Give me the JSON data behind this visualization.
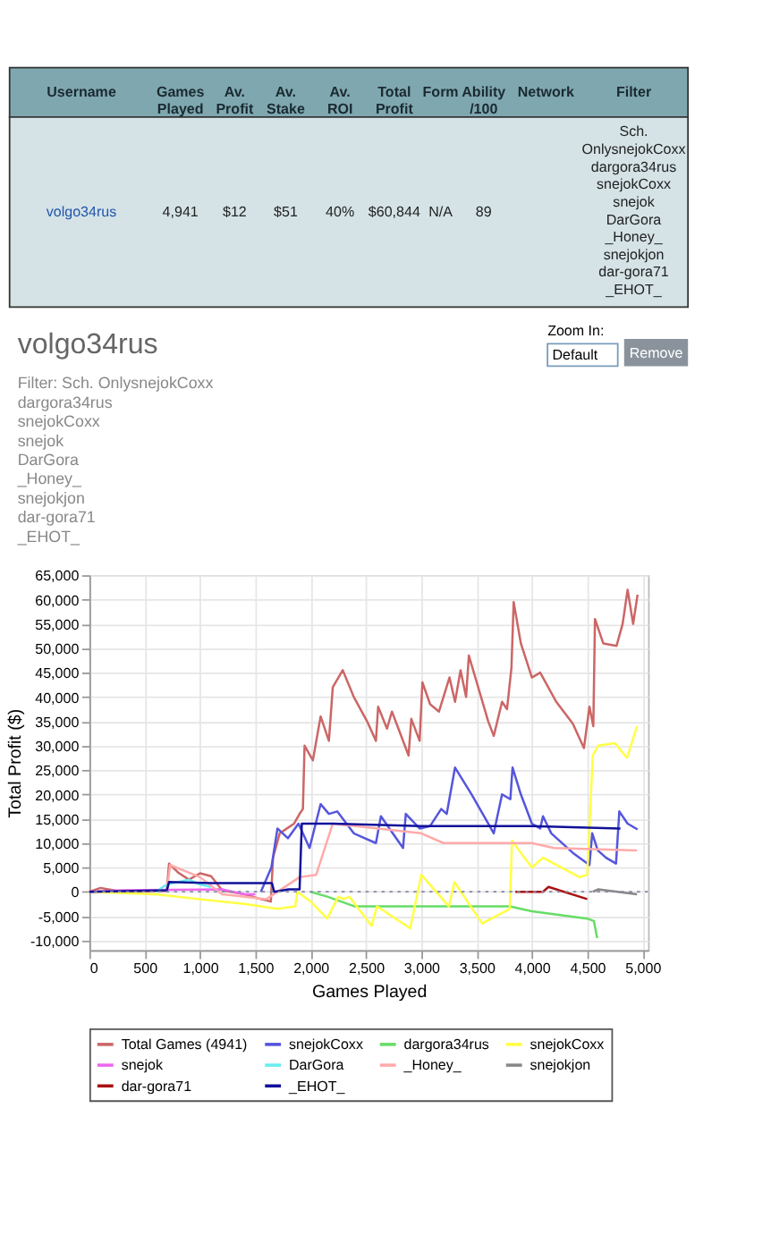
{
  "chart_data": {
    "type": "line",
    "title": "volgo34rus",
    "subtitle": "Filter: Sch. OnlysnejokCoxx\ndargora34rus\nsnejokCoxx\nsnejok\nDarGora\n_Honey_\nsnejokjon\ndar-gora71\n_EHOT_",
    "xlabel": "Games Played",
    "ylabel": "Total Profit ($)",
    "annotations": [
      "Username",
      "Games Played",
      "Av. Profit",
      "Av. Stake",
      "Av. ROI",
      "Total Profit",
      "Form",
      "Ability /100",
      "Network",
      "Filter",
      "volgo34rus",
      "4,941",
      "$12",
      "$51",
      "40%",
      "$60,844",
      "N/A",
      "89",
      "Sch. OnlysnejokCoxx dargora34rus snejokCoxx snejok DarGora _Honey_ snejokjon dar-gora71 _EHOT_",
      "Zoom In:",
      "Default",
      "Remove"
    ],
    "xlim": [
      0,
      5050
    ],
    "ylim": [
      -12000,
      65000
    ],
    "xticks": [
      0,
      500,
      {
        "value": 1000,
        "label": "1,000"
      },
      {
        "value": 1500,
        "label": "1,500"
      },
      {
        "value": 2000,
        "label": "2,000"
      },
      {
        "value": 2500,
        "label": "2,500"
      },
      {
        "value": 3000,
        "label": "3,000"
      },
      {
        "value": 3500,
        "label": "3,500"
      },
      {
        "value": 4000,
        "label": "4,000"
      },
      {
        "value": 4500,
        "label": "4,500"
      },
      {
        "value": 5000,
        "label": "5,000"
      }
    ],
    "yticks": [
      {
        "value": -10000,
        "label": "-10,000"
      },
      {
        "value": -5000,
        "label": "-5,000"
      },
      0,
      {
        "value": 5000,
        "label": "5,000"
      },
      {
        "value": 10000,
        "label": "10,000"
      },
      {
        "value": 15000,
        "label": "15,000"
      },
      {
        "value": 20000,
        "label": "20,000"
      },
      {
        "value": 25000,
        "label": "25,000"
      },
      {
        "value": 30000,
        "label": "30,000"
      },
      {
        "value": 35000,
        "label": "35,000"
      },
      {
        "value": 40000,
        "label": "40,000"
      },
      {
        "value": 45000,
        "label": "45,000"
      },
      {
        "value": 50000,
        "label": "50,000"
      },
      {
        "value": 55000,
        "label": "55,000"
      },
      {
        "value": 60000,
        "label": "60,000"
      },
      {
        "value": 65000,
        "label": "65,000"
      }
    ],
    "grid": true,
    "legend": "bottom",
    "marker": "none",
    "line_style": "solid",
    "ref_lines": [
      {
        "axis": "y",
        "value": 0,
        "color": "#8888aa",
        "line_style": "dotted"
      }
    ],
    "series": [
      {
        "name": "Total Games (4941)",
        "color": "#cc6666",
        "x": [
          0,
          100,
          300,
          700,
          720,
          800,
          900,
          1000,
          1100,
          1200,
          1400,
          1550,
          1640,
          1660,
          1720,
          1850,
          1900,
          1930,
          1945,
          2020,
          2090,
          2165,
          2200,
          2290,
          2390,
          2510,
          2590,
          2610,
          2690,
          2735,
          2885,
          2910,
          2985,
          3010,
          3080,
          3160,
          3255,
          3305,
          3355,
          3405,
          3430,
          3605,
          3655,
          3730,
          3775,
          3815,
          3835,
          3900,
          4000,
          4075,
          4220,
          4370,
          4470,
          4520,
          4555,
          4570,
          4645,
          4765,
          4820,
          4865,
          4915,
          4955
        ],
        "values": [
          0,
          800,
          0,
          200,
          5800,
          4000,
          2500,
          3800,
          3200,
          300,
          -500,
          -1500,
          -2000,
          7000,
          12000,
          14000,
          16000,
          17000,
          30000,
          27000,
          36000,
          31000,
          42000,
          45500,
          40000,
          35000,
          31000,
          38000,
          33500,
          37000,
          28000,
          35500,
          31000,
          43000,
          38500,
          37000,
          44000,
          39000,
          45500,
          40000,
          48500,
          35000,
          32000,
          39000,
          37500,
          46000,
          59500,
          51000,
          44000,
          45000,
          39000,
          34500,
          29500,
          38000,
          34000,
          56000,
          51000,
          50500,
          55000,
          62000,
          55000,
          61000
        ]
      },
      {
        "name": "snejokCoxx",
        "color": "#5555dd",
        "x": [
          1550,
          1645,
          1700,
          1795,
          1890,
          1990,
          2090,
          2165,
          2240,
          2390,
          2490,
          2590,
          2635,
          2835,
          2860,
          2985,
          3080,
          3180,
          3230,
          3305,
          3455,
          3605,
          3655,
          3730,
          3805,
          3825,
          3900,
          4000,
          4075,
          4100,
          4175,
          4370,
          4520,
          4545,
          4595,
          4670,
          4760,
          4790,
          4865,
          4955
        ],
        "values": [
          0,
          5000,
          13000,
          11000,
          14000,
          9000,
          18000,
          16000,
          16500,
          12000,
          11000,
          10000,
          15500,
          9000,
          16000,
          13000,
          13500,
          17000,
          16000,
          25500,
          20000,
          14000,
          12000,
          20000,
          19000,
          25500,
          20000,
          14000,
          13000,
          15500,
          12000,
          8000,
          5500,
          12000,
          8500,
          7000,
          5800,
          16500,
          14000,
          12800
        ]
      },
      {
        "name": "dargora34rus",
        "color": "#66dd66",
        "x": [
          2000,
          2150,
          2400,
          3800,
          4000,
          4500,
          4560,
          4590
        ],
        "values": [
          0,
          -1000,
          -3000,
          -3000,
          -4000,
          -5500,
          -6000,
          -9500
        ]
      },
      {
        "name": "snejokCoxx",
        "color": "#ffff44",
        "x": [
          0,
          600,
          1000,
          1400,
          1700,
          1860,
          1880,
          2000,
          2150,
          2250,
          2300,
          2350,
          2550,
          2600,
          2900,
          3000,
          3250,
          3300,
          3550,
          3800,
          3820,
          3900,
          4000,
          4100,
          4430,
          4500,
          4550,
          4600,
          4750,
          4860,
          4950
        ],
        "values": [
          0,
          -500,
          -1500,
          -2500,
          -3500,
          -3000,
          0,
          -2000,
          -5500,
          -1000,
          -1500,
          -1000,
          -7000,
          -3000,
          -7500,
          3500,
          -3000,
          2000,
          -6500,
          -3500,
          10500,
          8000,
          5000,
          7000,
          3000,
          3500,
          28000,
          30000,
          30500,
          27500,
          34000
        ]
      },
      {
        "name": "snejok",
        "color": "#ee66ee",
        "x": [
          0,
          300,
          1200,
          1400,
          1500
        ],
        "values": [
          0,
          300,
          500,
          -500,
          -500
        ]
      },
      {
        "name": "DarGora",
        "color": "#66eeee",
        "x": [
          600,
          700,
          900,
          1000,
          1100
        ],
        "values": [
          0,
          1500,
          2500,
          1500,
          1000
        ]
      },
      {
        "name": "_Honey_",
        "color": "#ffaaaa",
        "x": [
          700,
          730,
          1000,
          1200,
          1600,
          1900,
          2050,
          2200,
          3000,
          3200,
          4000,
          4200,
          4950
        ],
        "values": [
          0,
          5500,
          3000,
          -500,
          -1500,
          3000,
          3500,
          14000,
          12000,
          10000,
          10000,
          9000,
          8500
        ]
      },
      {
        "name": "snejokjon",
        "color": "#888888",
        "x": [
          4550,
          4600,
          4950
        ],
        "values": [
          0,
          500,
          -500
        ]
      },
      {
        "name": "dar-gora71",
        "color": "#aa1111",
        "x": [
          3850,
          4100,
          4150,
          4500
        ],
        "values": [
          0,
          0,
          1000,
          -1500
        ]
      },
      {
        "name": "_EHOT_",
        "color": "#111199",
        "x": [
          0,
          700,
          720,
          1100,
          1400,
          1650,
          1670,
          1800,
          1900,
          1920,
          2200,
          3000,
          4000,
          4800
        ],
        "values": [
          0,
          300,
          2000,
          1800,
          1800,
          1800,
          0,
          500,
          500,
          14000,
          14000,
          13500,
          13500,
          13000
        ]
      }
    ]
  }
}
